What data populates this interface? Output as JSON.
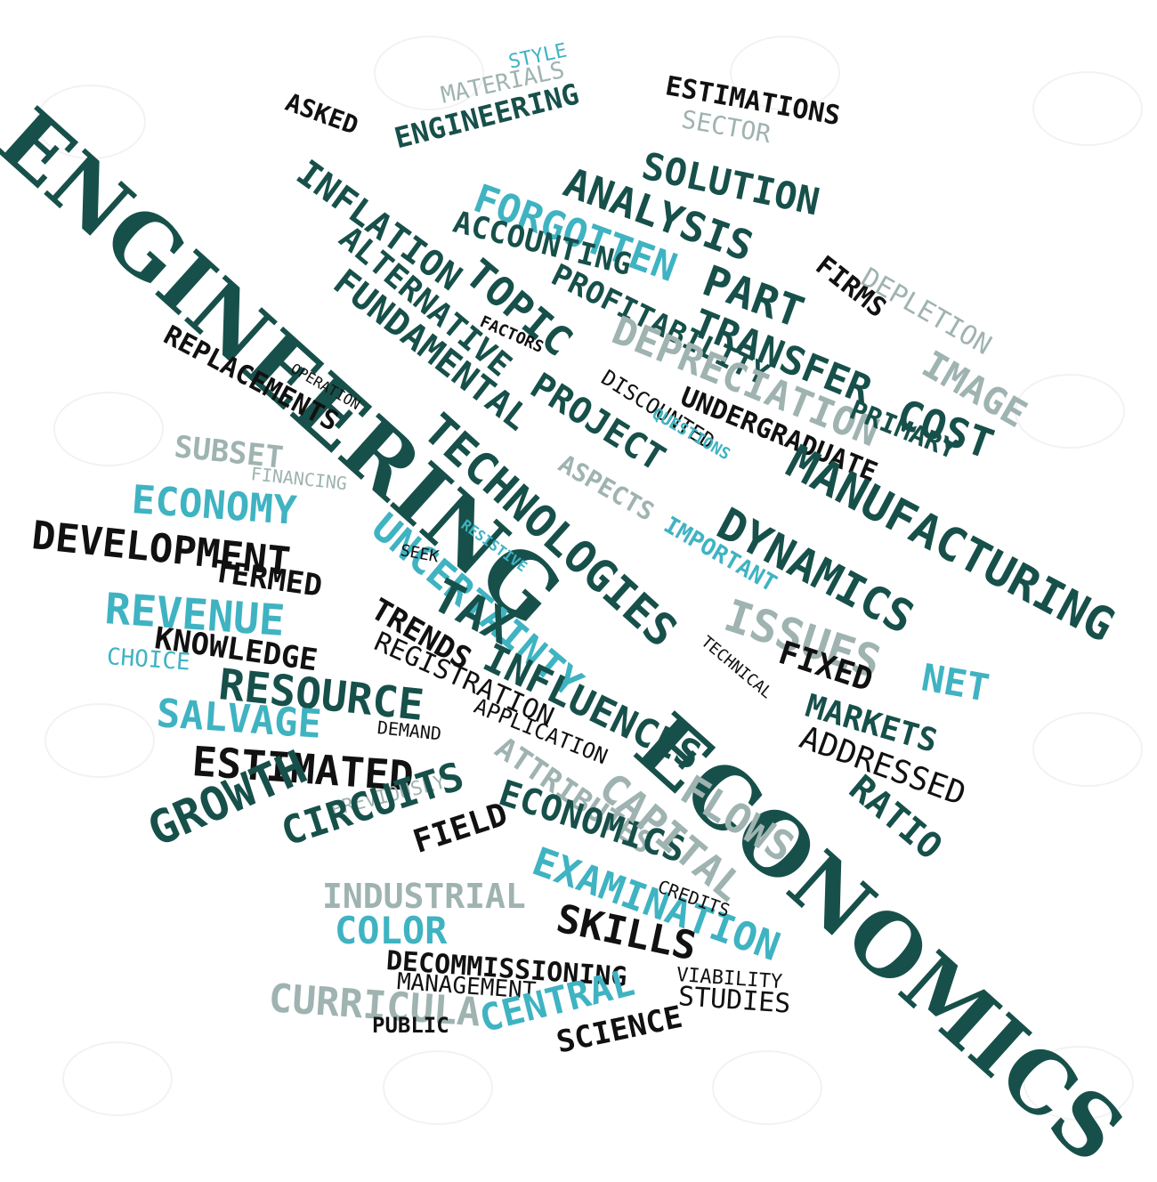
{
  "title_words": [
    "ENGINEERING",
    "ECONOMICS"
  ],
  "colors": {
    "dark": "#17504a",
    "black": "#111111",
    "teal": "#3fb3c2",
    "gray": "#9fb3b1"
  },
  "words": [
    "STYLE",
    "MATERIALS",
    "ASKED",
    "ENGINEERING",
    "ESTIMATIONS",
    "SECTOR",
    "SOLUTION",
    "FORGOTTEN",
    "ANALYSIS",
    "INFLATION",
    "ACCOUNTING",
    "ALTERNATIVE",
    "TOPIC",
    "PART",
    "FUNDAMENTAL",
    "PROFITABILITY",
    "FIRMS",
    "DEPLETION",
    "TRANSFER",
    "FACTORS",
    "COST",
    "IMAGE",
    "DEPRECIATION",
    "REPLACEMENTS",
    "PROJECT",
    "OPERATION",
    "DISCOUNTED",
    "UNDERGRADUATE",
    "PRIMARY",
    "QUESTIONS",
    "TECHNOLOGIES",
    "MANUFACTURING",
    "SUBSET",
    "FINANCING",
    "ASPECTS",
    "DYNAMICS",
    "ECONOMY",
    "UNCERTAINTY",
    "RESISTIVE",
    "IMPORTANT",
    "DEVELOPMENT",
    "SEEK",
    "TERMED",
    "ISSUES",
    "REVENUE",
    "TAX",
    "TRENDS",
    "NET",
    "KNOWLEDGE",
    "REGISTRATION",
    "FIXED",
    "CHOICE",
    "INFLUENCES",
    "TECHNICAL",
    "RESOURCE",
    "MARKETS",
    "APPLICATION",
    "SALVAGE",
    "ADDRESSED",
    "DEMAND",
    "ESTIMATED",
    "ATTRIBUTES",
    "FLOWS",
    "RATIO",
    "ECONOMICS",
    "CAPITAL",
    "PREVIOUSLY",
    "GROWTH",
    "CIRCUITS",
    "FIELD",
    "EXAMINATION",
    "CREDITS",
    "INDUSTRIAL",
    "SKILLS",
    "COLOR",
    "DECOMMISSIONING",
    "VIABILITY",
    "MANAGEMENT",
    "STUDIES",
    "CURRICULA",
    "CENTRAL",
    "PUBLIC",
    "SCIENCE"
  ]
}
